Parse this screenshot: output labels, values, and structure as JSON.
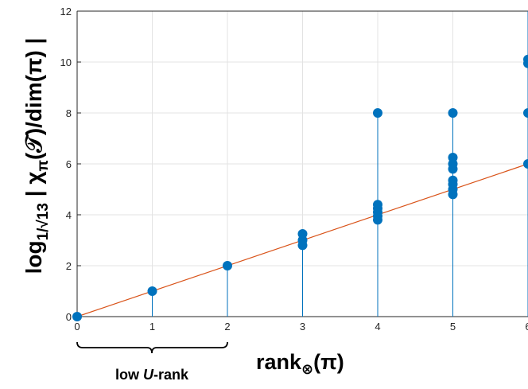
{
  "chart_data": {
    "type": "scatter",
    "title": "",
    "xlabel": {
      "main": "rank",
      "subscript": "⊗",
      "suffix": "(π)"
    },
    "ylabel": {
      "prefix": "log",
      "subscript": "1/√13",
      "rest": " | χ",
      "rest_subscript": "π",
      "tail": "(𝒯)/dim(π) |"
    },
    "xlim": [
      0,
      6
    ],
    "ylim": [
      0,
      12
    ],
    "x_ticks": [
      "0",
      "1",
      "2",
      "3",
      "4",
      "5",
      "6"
    ],
    "y_ticks": [
      "0",
      "2",
      "4",
      "6",
      "8",
      "10",
      "12"
    ],
    "grid": true,
    "series": [
      {
        "marker_color": "#0072BD",
        "points": [
          {
            "x": 0,
            "y": 0
          },
          {
            "x": 1,
            "y": 1
          },
          {
            "x": 2,
            "y": 2
          },
          {
            "x": 3,
            "y": 2.8
          },
          {
            "x": 3,
            "y": 3.0
          },
          {
            "x": 3,
            "y": 3.25
          },
          {
            "x": 4,
            "y": 3.8
          },
          {
            "x": 4,
            "y": 3.95
          },
          {
            "x": 4,
            "y": 4.1
          },
          {
            "x": 4,
            "y": 4.25
          },
          {
            "x": 4,
            "y": 4.4
          },
          {
            "x": 4,
            "y": 8
          },
          {
            "x": 5,
            "y": 4.8
          },
          {
            "x": 5,
            "y": 5.0
          },
          {
            "x": 5,
            "y": 5.2
          },
          {
            "x": 5,
            "y": 5.35
          },
          {
            "x": 5,
            "y": 5.8
          },
          {
            "x": 5,
            "y": 6.0
          },
          {
            "x": 5,
            "y": 6.25
          },
          {
            "x": 5,
            "y": 8
          },
          {
            "x": 6,
            "y": 6
          },
          {
            "x": 6,
            "y": 8
          },
          {
            "x": 6,
            "y": 9.95
          },
          {
            "x": 6,
            "y": 10.1
          }
        ]
      }
    ],
    "stems": [
      {
        "x": 1,
        "y_top": 1
      },
      {
        "x": 2,
        "y_top": 2
      },
      {
        "x": 3,
        "y_top": 3.25
      },
      {
        "x": 4,
        "y_top": 8
      },
      {
        "x": 5,
        "y_top": 8
      },
      {
        "x": 6,
        "y_top": 12
      }
    ],
    "reference_line": {
      "color": "#D95319",
      "x": [
        0,
        6
      ],
      "y": [
        0,
        6
      ]
    },
    "annotation": {
      "text_before": "low ",
      "text_italic": "U",
      "text_after": "-rank",
      "x_range": [
        0,
        2
      ]
    }
  }
}
